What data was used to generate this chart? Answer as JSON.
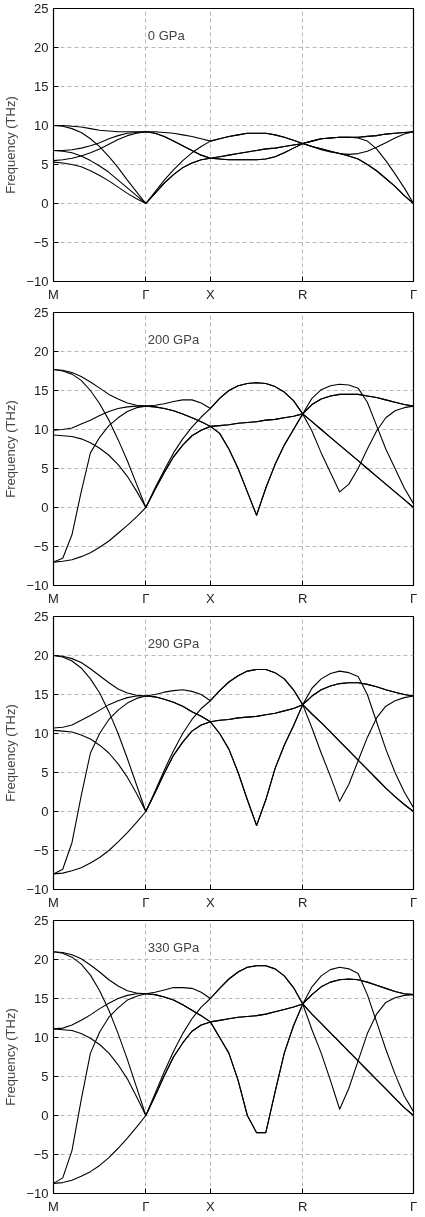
{
  "chart_data": [
    {
      "type": "line",
      "annotations": [
        "0 GPa"
      ],
      "ylabel": "Frequency (THz)",
      "ylim": [
        -10,
        25
      ],
      "yticks": [
        -10,
        -5,
        0,
        5,
        10,
        15,
        20,
        25
      ],
      "grid": true,
      "line_style": "solid",
      "marker": "none",
      "categories": [
        "M",
        null,
        null,
        null,
        null,
        null,
        null,
        null,
        null,
        null,
        "Γ",
        null,
        null,
        null,
        null,
        null,
        null,
        "X",
        null,
        null,
        null,
        null,
        null,
        null,
        null,
        null,
        null,
        "R",
        null,
        null,
        null,
        null,
        null,
        null,
        null,
        null,
        null,
        null,
        null,
        "Γ"
      ],
      "series": [
        {
          "color": "#000000",
          "values": [
            10,
            10,
            9.9,
            9.8,
            9.6,
            9.4,
            9.3,
            9.2,
            9.2,
            9.2,
            9.2,
            9.2,
            9.1,
            9,
            8.8,
            8.6,
            8.3,
            8.0,
            8.3,
            8.6,
            8.8,
            9,
            9,
            9,
            8.8,
            8.5,
            8.1,
            7.7,
            8,
            8.3,
            8.4,
            8.5,
            8.5,
            8.5,
            8.6,
            8.7,
            8.9,
            9,
            9.1,
            9.2
          ]
        },
        {
          "color": "#000000",
          "values": [
            10,
            9.9,
            9.6,
            9.1,
            8.3,
            7.3,
            6,
            4.6,
            3,
            1.5,
            0,
            1.5,
            3,
            4.3,
            5.5,
            6.5,
            7.3,
            8,
            8.3,
            8.6,
            8.8,
            9,
            9,
            9,
            8.8,
            8.5,
            8.1,
            7.7,
            8,
            8.3,
            8.4,
            8.5,
            8.5,
            8.4,
            8,
            7,
            5.5,
            3.8,
            2,
            0
          ]
        },
        {
          "color": "#000000",
          "values": [
            6.8,
            6.8,
            6.9,
            7.1,
            7.4,
            7.8,
            8.3,
            8.7,
            9,
            9.1,
            9.2,
            9,
            8.6,
            8,
            7.4,
            6.8,
            6.2,
            5.8,
            5.7,
            5.6,
            5.6,
            5.6,
            5.6,
            5.7,
            6,
            6.5,
            7.1,
            7.7,
            7.3,
            6.9,
            6.6,
            6.4,
            6.3,
            6.4,
            6.7,
            7.2,
            7.8,
            8.4,
            8.9,
            9.2
          ]
        },
        {
          "color": "#000000",
          "values": [
            6.8,
            6.7,
            6.5,
            6.1,
            5.5,
            4.8,
            4,
            3,
            2,
            1,
            0,
            1.3,
            2.6,
            3.7,
            4.6,
            5.2,
            5.6,
            5.8,
            6,
            6.2,
            6.4,
            6.6,
            6.8,
            7,
            7.1,
            7.3,
            7.5,
            7.7,
            7.3,
            7,
            6.7,
            6.4,
            6.1,
            5.7,
            5,
            4.2,
            3.2,
            2.2,
            1,
            0
          ]
        },
        {
          "color": "#000000",
          "values": [
            5.5,
            5.6,
            5.8,
            6.1,
            6.5,
            7,
            7.6,
            8.2,
            8.7,
            9,
            9.2,
            9,
            8.6,
            8,
            7.4,
            6.8,
            6.2,
            5.8,
            5.7,
            5.6,
            5.6,
            5.6,
            5.6,
            5.7,
            6,
            6.5,
            7.1,
            7.7,
            8,
            8.3,
            8.4,
            8.5,
            8.5,
            8.5,
            8.6,
            8.7,
            8.9,
            9,
            9.1,
            9.2
          ]
        },
        {
          "color": "#000000",
          "values": [
            5.3,
            5.2,
            5,
            4.7,
            4.2,
            3.6,
            2.9,
            2.1,
            1.3,
            0.6,
            0,
            1.3,
            2.6,
            3.7,
            4.6,
            5.2,
            5.6,
            5.8,
            6,
            6.2,
            6.4,
            6.6,
            6.8,
            7,
            7.1,
            7.3,
            7.5,
            7.7,
            7.3,
            7,
            6.7,
            6.4,
            6.1,
            5.7,
            5,
            4.2,
            3.2,
            2.2,
            1,
            0
          ]
        }
      ]
    },
    {
      "type": "line",
      "annotations": [
        "200 GPa"
      ],
      "ylabel": "Frequency (THz)",
      "ylim": [
        -10,
        25
      ],
      "yticks": [
        -10,
        -5,
        0,
        5,
        10,
        15,
        20,
        25
      ],
      "grid": true,
      "line_style": "solid",
      "marker": "none",
      "categories": [
        "M",
        null,
        null,
        null,
        null,
        null,
        null,
        null,
        null,
        null,
        "Γ",
        null,
        null,
        null,
        null,
        null,
        null,
        "X",
        null,
        null,
        null,
        null,
        null,
        null,
        null,
        null,
        null,
        "R",
        null,
        null,
        null,
        null,
        null,
        null,
        null,
        null,
        null,
        null,
        null,
        "Γ"
      ],
      "series": [
        {
          "color": "#000000",
          "values": [
            17.7,
            17.6,
            17.3,
            16.8,
            16.1,
            15.3,
            14.5,
            13.9,
            13.4,
            13.1,
            13,
            13.1,
            13.3,
            13.6,
            13.8,
            13.8,
            13.4,
            12.7,
            14,
            15,
            15.6,
            15.9,
            16,
            15.9,
            15.5,
            14.8,
            13.7,
            12,
            14,
            15.1,
            15.6,
            15.8,
            15.7,
            15.3,
            13.5,
            10.5,
            7.5,
            5,
            2.5,
            0.5
          ]
        },
        {
          "color": "#000000",
          "values": [
            17.7,
            17.5,
            17.1,
            16.3,
            15,
            13.3,
            11.2,
            8.7,
            6,
            3,
            0,
            2.5,
            4.8,
            7,
            8.8,
            10.3,
            11.6,
            12.7,
            14,
            15,
            15.6,
            15.9,
            16,
            15.9,
            15.5,
            14.8,
            13.7,
            12,
            13.2,
            13.9,
            14.3,
            14.5,
            14.5,
            14.5,
            14.3,
            14.1,
            13.8,
            13.5,
            13.2,
            13
          ]
        },
        {
          "color": "#000000",
          "values": [
            9.9,
            10,
            10.2,
            10.7,
            11.2,
            11.8,
            12.3,
            12.7,
            12.9,
            13,
            13,
            12.9,
            12.7,
            12.4,
            12,
            11.5,
            11,
            10.4,
            10.5,
            10.6,
            10.8,
            10.9,
            11,
            11.2,
            11.3,
            11.5,
            11.7,
            12,
            9.8,
            7,
            4.5,
            2,
            3,
            5,
            7.5,
            9.8,
            11.5,
            12.4,
            12.8,
            13
          ]
        },
        {
          "color": "#000000",
          "values": [
            9.3,
            9.2,
            9.1,
            8.8,
            8.3,
            7.6,
            6.7,
            5.5,
            4,
            2.1,
            0,
            2.3,
            4.5,
            6.5,
            8,
            9.2,
            9.9,
            10.4,
            9.5,
            7.5,
            5,
            2,
            -1,
            2.5,
            5.5,
            8,
            10,
            12,
            11,
            10,
            9,
            8,
            7,
            6,
            5,
            4,
            3,
            2,
            1,
            0
          ]
        },
        {
          "color": "#000000",
          "values": [
            -7,
            -6.5,
            -3.5,
            2,
            7,
            9,
            10.5,
            11.5,
            12.3,
            12.8,
            13,
            12.9,
            12.7,
            12.4,
            12,
            11.5,
            11,
            10.4,
            10.5,
            10.6,
            10.8,
            10.9,
            11,
            11.2,
            11.3,
            11.5,
            11.7,
            12,
            13.2,
            13.9,
            14.3,
            14.5,
            14.5,
            14.5,
            14.3,
            14.1,
            13.8,
            13.5,
            13.2,
            13
          ]
        },
        {
          "color": "#000000",
          "values": [
            -7,
            -6.9,
            -6.7,
            -6.3,
            -5.8,
            -5.1,
            -4.3,
            -3.3,
            -2.3,
            -1.2,
            0,
            2.3,
            4.5,
            6.5,
            8,
            9.2,
            9.9,
            10.4,
            9.5,
            7.5,
            5,
            2,
            -1,
            2.5,
            5.5,
            8,
            10,
            12,
            11,
            10,
            9,
            8,
            7,
            6,
            5,
            4,
            3,
            2,
            1,
            0
          ]
        }
      ]
    },
    {
      "type": "line",
      "annotations": [
        "290 GPa"
      ],
      "ylabel": "Frequency (THz)",
      "ylim": [
        -10,
        25
      ],
      "yticks": [
        -10,
        -5,
        0,
        5,
        10,
        15,
        20,
        25
      ],
      "grid": true,
      "line_style": "solid",
      "marker": "none",
      "categories": [
        "M",
        null,
        null,
        null,
        null,
        null,
        null,
        null,
        null,
        null,
        "Γ",
        null,
        null,
        null,
        null,
        null,
        null,
        "X",
        null,
        null,
        null,
        null,
        null,
        null,
        null,
        null,
        null,
        "R",
        null,
        null,
        null,
        null,
        null,
        null,
        null,
        null,
        null,
        null,
        null,
        "Γ"
      ],
      "series": [
        {
          "color": "#000000",
          "values": [
            20,
            19.9,
            19.6,
            19.1,
            18.3,
            17.4,
            16.5,
            15.7,
            15.2,
            14.9,
            14.8,
            15,
            15.3,
            15.5,
            15.6,
            15.4,
            15,
            14.2,
            15.5,
            16.6,
            17.4,
            18,
            18.2,
            18.2,
            17.8,
            17,
            15.6,
            13.7,
            15.8,
            17,
            17.7,
            18,
            17.8,
            17.3,
            15,
            11.5,
            8,
            5,
            2.5,
            0.5
          ]
        },
        {
          "color": "#000000",
          "values": [
            20,
            19.8,
            19.3,
            18.4,
            17,
            15.2,
            12.8,
            10,
            6.8,
            3.4,
            0,
            2.6,
            5.3,
            7.8,
            10,
            11.8,
            13.2,
            14.2,
            15.5,
            16.6,
            17.4,
            18,
            18.2,
            18.2,
            17.8,
            17,
            15.6,
            13.7,
            14.8,
            15.6,
            16.1,
            16.4,
            16.5,
            16.5,
            16.3,
            16,
            15.6,
            15.3,
            15,
            14.8
          ]
        },
        {
          "color": "#000000",
          "values": [
            10.7,
            10.8,
            11.1,
            11.7,
            12.3,
            13,
            13.7,
            14.2,
            14.6,
            14.8,
            14.8,
            14.7,
            14.4,
            14,
            13.5,
            12.8,
            12.2,
            11.5,
            11.7,
            11.8,
            12,
            12.1,
            12.2,
            12.4,
            12.6,
            12.9,
            13.2,
            13.7,
            10.7,
            7.5,
            4.5,
            1.3,
            3.5,
            6.5,
            9.5,
            12,
            13.5,
            14.2,
            14.6,
            14.8
          ]
        },
        {
          "color": "#000000",
          "values": [
            10.4,
            10.3,
            10.2,
            9.8,
            9.3,
            8.5,
            7.5,
            6.1,
            4.4,
            2.3,
            0,
            2.4,
            4.9,
            7.2,
            8.9,
            10.3,
            11.1,
            11.5,
            10,
            8,
            5,
            1.5,
            -1.8,
            1.5,
            5.5,
            8.5,
            11,
            13.7,
            12.5,
            11.4,
            10.2,
            9,
            7.8,
            6.6,
            5.4,
            4.2,
            3,
            1.9,
            0.9,
            0
          ]
        },
        {
          "color": "#000000",
          "values": [
            -8,
            -7.4,
            -4,
            2,
            7.5,
            10,
            11.8,
            13,
            13.9,
            14.5,
            14.8,
            14.7,
            14.4,
            14,
            13.5,
            12.8,
            12.2,
            11.5,
            11.7,
            11.8,
            12,
            12.1,
            12.2,
            12.4,
            12.6,
            12.9,
            13.2,
            13.7,
            14.8,
            15.6,
            16.1,
            16.4,
            16.5,
            16.5,
            16.3,
            16,
            15.6,
            15.3,
            15,
            14.8
          ]
        },
        {
          "color": "#000000",
          "values": [
            -8,
            -7.9,
            -7.6,
            -7.2,
            -6.6,
            -5.9,
            -5,
            -3.9,
            -2.7,
            -1.4,
            0,
            2.4,
            4.9,
            7.2,
            8.9,
            10.3,
            11.1,
            11.5,
            10,
            8,
            5,
            1.5,
            -1.8,
            1.5,
            5.5,
            8.5,
            11,
            13.7,
            12.5,
            11.4,
            10.2,
            9,
            7.8,
            6.6,
            5.4,
            4.2,
            3,
            1.9,
            0.9,
            0
          ]
        }
      ]
    },
    {
      "type": "line",
      "annotations": [
        "330 GPa"
      ],
      "ylabel": "Frequency (THz)",
      "ylim": [
        -10,
        25
      ],
      "yticks": [
        -10,
        -5,
        0,
        5,
        10,
        15,
        20,
        25
      ],
      "grid": true,
      "line_style": "solid",
      "marker": "none",
      "categories": [
        "M",
        null,
        null,
        null,
        null,
        null,
        null,
        null,
        null,
        null,
        "Γ",
        null,
        null,
        null,
        null,
        null,
        null,
        "X",
        null,
        null,
        null,
        null,
        null,
        null,
        null,
        null,
        null,
        "R",
        null,
        null,
        null,
        null,
        null,
        null,
        null,
        null,
        null,
        null,
        null,
        "Γ"
      ],
      "series": [
        {
          "color": "#000000",
          "values": [
            21,
            20.9,
            20.6,
            20.1,
            19.3,
            18.4,
            17.4,
            16.6,
            16,
            15.7,
            15.6,
            15.8,
            16.1,
            16.4,
            16.4,
            16.3,
            15.8,
            15,
            16.3,
            17.5,
            18.4,
            19,
            19.2,
            19.2,
            18.8,
            17.9,
            16.4,
            14.3,
            16.5,
            17.9,
            18.7,
            19,
            18.8,
            18.2,
            15.5,
            12,
            8.5,
            5.3,
            2.5,
            0.5
          ]
        },
        {
          "color": "#000000",
          "values": [
            21,
            20.8,
            20.3,
            19.4,
            18,
            16,
            13.5,
            10.5,
            7.2,
            3.6,
            0,
            2.8,
            5.6,
            8.2,
            10.5,
            12.4,
            13.9,
            15,
            16.3,
            17.5,
            18.4,
            19,
            19.2,
            19.2,
            18.8,
            17.9,
            16.4,
            14.3,
            15.5,
            16.5,
            17.1,
            17.4,
            17.5,
            17.4,
            17.1,
            16.7,
            16.3,
            15.9,
            15.6,
            15.5
          ]
        },
        {
          "color": "#000000",
          "values": [
            11.1,
            11.2,
            11.6,
            12.2,
            12.9,
            13.7,
            14.4,
            15,
            15.4,
            15.6,
            15.6,
            15.5,
            15.2,
            14.8,
            14.2,
            13.5,
            12.8,
            12,
            12.2,
            12.4,
            12.6,
            12.7,
            12.8,
            13,
            13.3,
            13.6,
            13.9,
            14.3,
            11,
            8,
            4.5,
            0.8,
            3.5,
            7,
            10.5,
            13,
            14.5,
            15.1,
            15.4,
            15.5
          ]
        },
        {
          "color": "#000000",
          "values": [
            11.1,
            11,
            10.9,
            10.5,
            9.9,
            9.1,
            8,
            6.5,
            4.7,
            2.4,
            0,
            2.5,
            5.1,
            7.5,
            9.3,
            10.8,
            11.6,
            12,
            10,
            8,
            4.5,
            0,
            -2.2,
            -2.2,
            3,
            8,
            11.5,
            14.3,
            13,
            11.8,
            10.6,
            9.4,
            8.2,
            7,
            5.8,
            4.6,
            3.4,
            2.2,
            1,
            0
          ]
        },
        {
          "color": "#000000",
          "values": [
            -8.7,
            -8,
            -4.5,
            2,
            8,
            10.7,
            12.6,
            13.8,
            14.8,
            15.3,
            15.6,
            15.5,
            15.2,
            14.8,
            14.2,
            13.5,
            12.8,
            12,
            12.2,
            12.4,
            12.6,
            12.7,
            12.8,
            13,
            13.3,
            13.6,
            13.9,
            14.3,
            15.5,
            16.5,
            17.1,
            17.4,
            17.5,
            17.4,
            17.1,
            16.7,
            16.3,
            15.9,
            15.6,
            15.5
          ]
        },
        {
          "color": "#000000",
          "values": [
            -8.7,
            -8.6,
            -8.3,
            -7.8,
            -7.2,
            -6.4,
            -5.4,
            -4.2,
            -2.9,
            -1.5,
            0,
            2.5,
            5.1,
            7.5,
            9.3,
            10.8,
            11.6,
            12,
            10,
            8,
            4.5,
            0,
            -2.2,
            -2.2,
            3,
            8,
            11.5,
            14.3,
            13,
            11.8,
            10.6,
            9.4,
            8.2,
            7,
            5.8,
            4.6,
            3.4,
            2.2,
            1,
            0
          ]
        }
      ]
    }
  ]
}
